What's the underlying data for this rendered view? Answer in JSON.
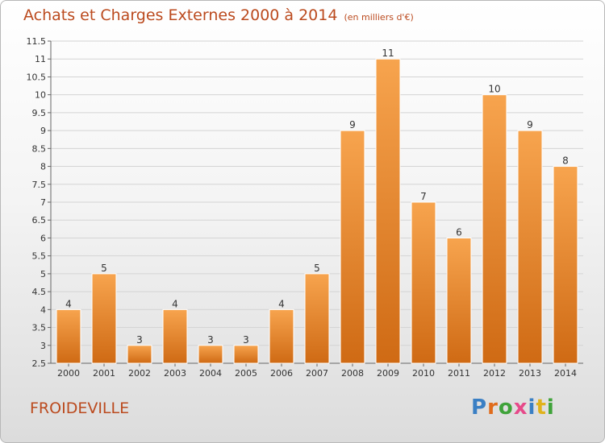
{
  "header": {
    "title": "Achats et Charges Externes 2000 à 2014",
    "unit": "(en milliers d'€)"
  },
  "footer": {
    "commune": "FROIDEVILLE",
    "brand_letters": [
      "P",
      "r",
      "o",
      "x",
      "i",
      "t",
      "i"
    ]
  },
  "colors": {
    "bar_top": "#f7a44e",
    "bar_bottom": "#cf6a14",
    "title": "#bb4a1e",
    "brand": [
      "#3a7fc4",
      "#e06c1c",
      "#3fa33a",
      "#e64a8a",
      "#3a7fc4",
      "#e0b21c",
      "#3fa33a"
    ]
  },
  "chart_data": {
    "type": "bar",
    "title": "Achats et Charges Externes 2000 à 2014",
    "subtitle": "(en milliers d'€)",
    "xlabel": "",
    "ylabel": "",
    "categories": [
      "2000",
      "2001",
      "2002",
      "2003",
      "2004",
      "2005",
      "2006",
      "2007",
      "2008",
      "2009",
      "2010",
      "2011",
      "2012",
      "2013",
      "2014"
    ],
    "values": [
      4,
      5,
      3,
      4,
      3,
      3,
      4,
      5,
      9,
      11,
      7,
      6,
      10,
      9,
      8
    ],
    "ylim": [
      2.5,
      11.5
    ],
    "yticks": [
      "2.5",
      "3",
      "3.5",
      "4",
      "4.5",
      "5",
      "5.5",
      "6",
      "6.5",
      "7",
      "7.5",
      "8",
      "8.5",
      "9",
      "9.5",
      "10",
      "10.5",
      "11",
      "11.5"
    ],
    "grid": true
  }
}
